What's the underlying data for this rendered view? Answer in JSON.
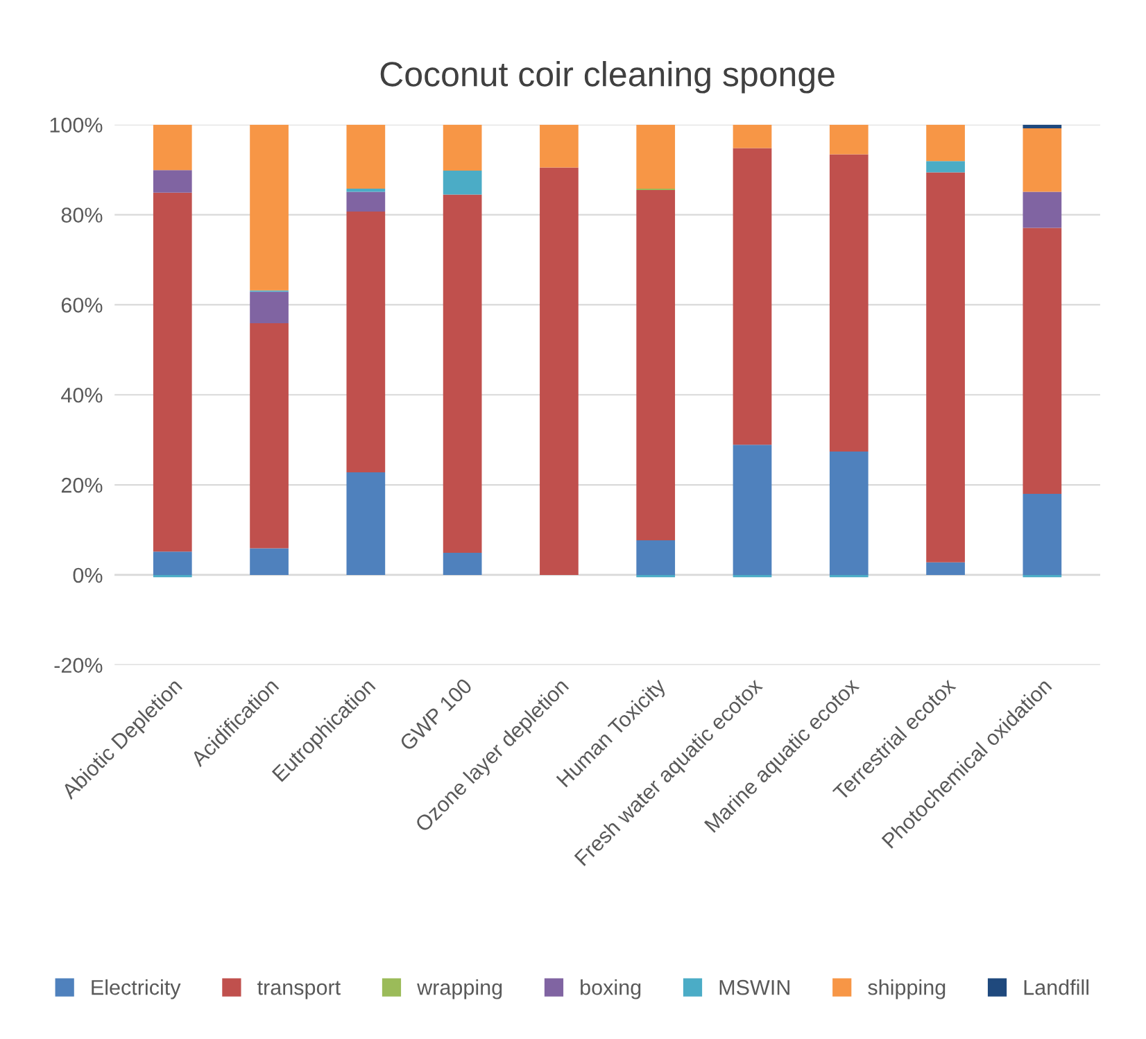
{
  "chart_data": {
    "type": "bar",
    "title": "Coconut coir cleaning sponge",
    "stacked": true,
    "categories": [
      "Abiotic Depletion",
      "Acidification",
      "Eutrophication",
      "GWP 100",
      "Ozone layer depletion",
      "Human Toxicity",
      "Fresh water aquatic ecotox",
      "Marine aquatic ecotox",
      "Terrestrial ecotox",
      "Photochemical oxidation"
    ],
    "series": [
      {
        "name": "Electricity",
        "color": "#4f81bd",
        "values": [
          5.2,
          5.9,
          22.8,
          4.9,
          0,
          7.7,
          28.9,
          27.4,
          2.8,
          18.0
        ]
      },
      {
        "name": "transport",
        "color": "#c0504d",
        "values": [
          79.7,
          50.0,
          57.9,
          79.6,
          90.5,
          77.8,
          65.9,
          66.0,
          86.6,
          59.1
        ]
      },
      {
        "name": "wrapping",
        "color": "#9bbb59",
        "values": [
          0,
          0,
          0,
          0,
          0,
          0.3,
          0,
          0,
          0,
          0
        ]
      },
      {
        "name": "boxing",
        "color": "#8064a2",
        "values": [
          5.0,
          7.0,
          4.4,
          0,
          0,
          0,
          0,
          0,
          0,
          8.0
        ]
      },
      {
        "name": "MSWIN",
        "color": "#4bacc6",
        "values": [
          -0.5,
          0.3,
          0.7,
          5.3,
          0,
          -0.5,
          -0.5,
          -0.5,
          2.5,
          -0.5
        ]
      },
      {
        "name": "shipping",
        "color": "#f79646",
        "values": [
          10.1,
          36.8,
          14.2,
          10.2,
          9.5,
          14.2,
          5.2,
          6.6,
          8.1,
          14.1
        ]
      },
      {
        "name": "Landfill",
        "color": "#1f497d",
        "values": [
          0,
          0,
          0,
          0,
          0,
          0,
          0,
          0,
          0,
          0.8
        ]
      }
    ],
    "ylim": [
      -20,
      100
    ],
    "yticks": [
      {
        "value": -20,
        "label": "-20%"
      },
      {
        "value": 0,
        "label": "0%"
      },
      {
        "value": 20,
        "label": "20%"
      },
      {
        "value": 40,
        "label": "40%"
      },
      {
        "value": 60,
        "label": "60%"
      },
      {
        "value": 80,
        "label": "80%"
      },
      {
        "value": 100,
        "label": "100%"
      }
    ],
    "grid": "y",
    "legend": "bottom"
  }
}
